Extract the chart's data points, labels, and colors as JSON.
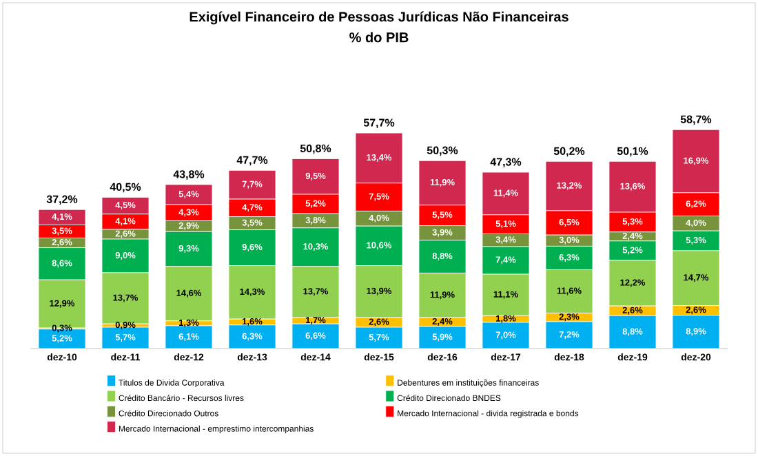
{
  "chart_data": {
    "type": "bar",
    "stacked": true,
    "legend": "bottom",
    "title": "Exigível Financeiro de Pessoas Jurídicas Não Financeiras",
    "subtitle": "% do PIB",
    "categories": [
      "dez-10",
      "dez-11",
      "dez-12",
      "dez-13",
      "dez-14",
      "dez-15",
      "dez-16",
      "dez-17",
      "dez-18",
      "dez-19",
      "dez-20"
    ],
    "series": [
      {
        "name": "Titulos de Divida Corporativa",
        "color": "#00b0f0",
        "values": [
          5.2,
          5.7,
          6.1,
          6.3,
          6.6,
          5.7,
          5.9,
          7.0,
          7.2,
          8.8,
          8.9
        ],
        "value_labels": [
          "5,2%",
          "5,7%",
          "6,1%",
          "6,3%",
          "6,6%",
          "5,7%",
          "5,9%",
          "7,0%",
          "7,2%",
          "8,8%",
          "8,9%"
        ]
      },
      {
        "name": "Debentures em instituições financeiras",
        "color": "#ffc000",
        "values": [
          0.3,
          0.9,
          1.3,
          1.6,
          1.7,
          2.6,
          2.4,
          1.8,
          2.3,
          2.6,
          2.6
        ],
        "value_labels": [
          "0,3%",
          "0,9%",
          "1,3%",
          "1,6%",
          "1,7%",
          "2,6%",
          "2,4%",
          "1,8%",
          "2,3%",
          "2,6%",
          "2,6%"
        ]
      },
      {
        "name": "Crédito Bancário - Recursos livres",
        "color": "#92d050",
        "values": [
          12.9,
          13.7,
          14.6,
          14.3,
          13.7,
          13.9,
          11.9,
          11.1,
          11.6,
          12.2,
          14.7
        ],
        "value_labels": [
          "12,9%",
          "13,7%",
          "14,6%",
          "14,3%",
          "13,7%",
          "13,9%",
          "11,9%",
          "11,1%",
          "11,6%",
          "12,2%",
          "14,7%"
        ]
      },
      {
        "name": "Crédito Direcionado  BNDES",
        "color": "#00b050",
        "values": [
          8.6,
          9.0,
          9.3,
          9.6,
          10.3,
          10.6,
          8.8,
          7.4,
          6.3,
          5.2,
          5.3
        ],
        "value_labels": [
          "8,6%",
          "9,0%",
          "9,3%",
          "9,6%",
          "10,3%",
          "10,6%",
          "8,8%",
          "7,4%",
          "6,3%",
          "5,2%",
          "5,3%"
        ]
      },
      {
        "name": "Crédito Direcionado Outros",
        "color": "#77933c",
        "values": [
          2.6,
          2.6,
          2.9,
          3.5,
          3.8,
          4.0,
          3.9,
          3.4,
          3.0,
          2.4,
          4.0
        ],
        "value_labels": [
          "2,6%",
          "2,6%",
          "2,9%",
          "3,5%",
          "3,8%",
          "4,0%",
          "3,9%",
          "3,4%",
          "3,0%",
          "2,4%",
          "4,0%"
        ]
      },
      {
        "name": "Mercado Internacional - divida registrada e bonds",
        "color": "#ff0000",
        "values": [
          3.5,
          4.1,
          4.3,
          4.7,
          5.2,
          7.5,
          5.5,
          5.1,
          6.5,
          5.3,
          6.2
        ],
        "value_labels": [
          "3,5%",
          "4,1%",
          "4,3%",
          "4,7%",
          "5,2%",
          "7,5%",
          "5,5%",
          "5,1%",
          "6,5%",
          "5,3%",
          "6,2%"
        ]
      },
      {
        "name": "Mercado Internacional - emprestimo intercompanhias",
        "color": "#d0284f",
        "values": [
          4.1,
          4.5,
          5.4,
          7.7,
          9.5,
          13.4,
          11.9,
          11.4,
          13.2,
          13.6,
          16.9
        ],
        "value_labels": [
          "4,1%",
          "4,5%",
          "5,4%",
          "7,7%",
          "9,5%",
          "13,4%",
          "11,9%",
          "11,4%",
          "13,2%",
          "13,6%",
          "16,9%"
        ]
      }
    ],
    "totals": [
      "37,2%",
      "40,5%",
      "43,8%",
      "47,7%",
      "50,8%",
      "57,7%",
      "50,3%",
      "47,3%",
      "50,2%",
      "50,1%",
      "58,7%"
    ]
  }
}
